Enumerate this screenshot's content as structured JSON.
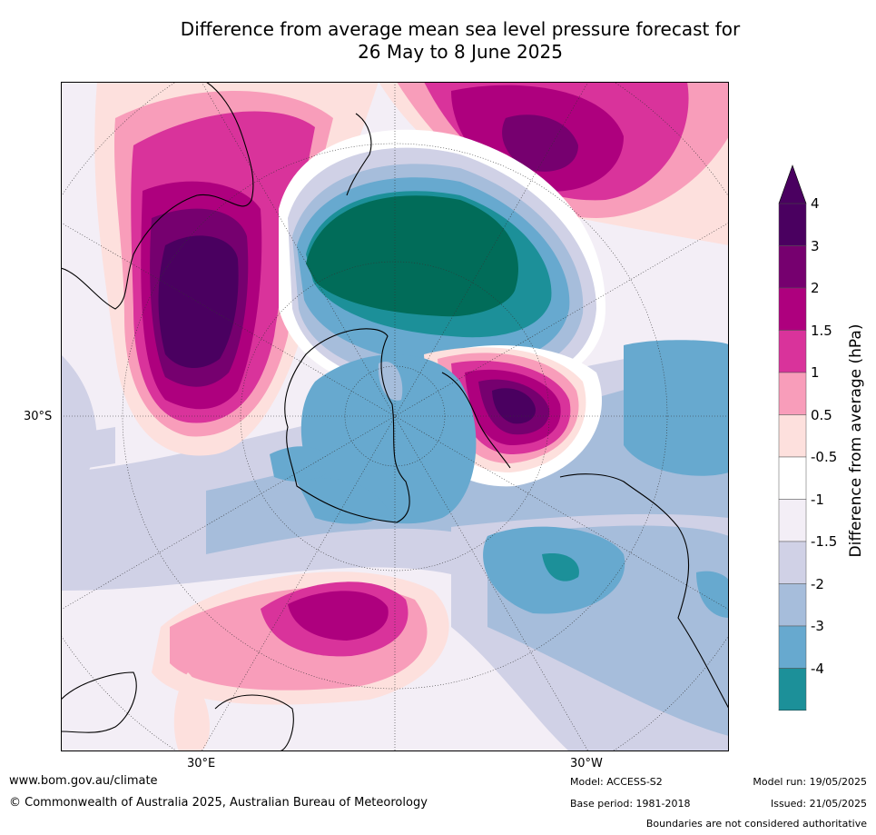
{
  "title_line1": "Difference from average mean sea level pressure forecast for",
  "title_line2": "26 May to 8 June 2025",
  "axis_labels": {
    "lat": "30°S",
    "lon_e": "30°E",
    "lon_w": "30°W"
  },
  "colorbar": {
    "title": "Difference from average (hPa)",
    "levels": [
      {
        "label": "4",
        "color": "#4a0060"
      },
      {
        "label": "3",
        "color": "#76006f"
      },
      {
        "label": "2",
        "color": "#ae007e"
      },
      {
        "label": "1.5",
        "color": "#d9339b"
      },
      {
        "label": "1",
        "color": "#f89dba"
      },
      {
        "label": "0.5",
        "color": "#fde0dd"
      },
      {
        "label": "-0.5",
        "color": "#ffffff"
      },
      {
        "label": "-1",
        "color": "#f3eef6"
      },
      {
        "label": "-1.5",
        "color": "#d0d1e6"
      },
      {
        "label": "-2",
        "color": "#a6bddb"
      },
      {
        "label": "-3",
        "color": "#67a9cf"
      },
      {
        "label": "-4",
        "color": "#1c9099"
      }
    ],
    "top_extend_color": "#4a0060",
    "bottom_extend_color": "#016c59"
  },
  "footer": {
    "website": "www.bom.gov.au/climate",
    "copyright": "© Commonwealth of Australia 2025, Australian Bureau of Meteorology",
    "model": "Model: ACCESS-S2",
    "base_period": "Base period: 1981-2018",
    "model_run": "Model run: 19/05/2025",
    "issued": "Issued: 21/05/2025",
    "disclaimer": "Boundaries are not considered authoritative"
  }
}
